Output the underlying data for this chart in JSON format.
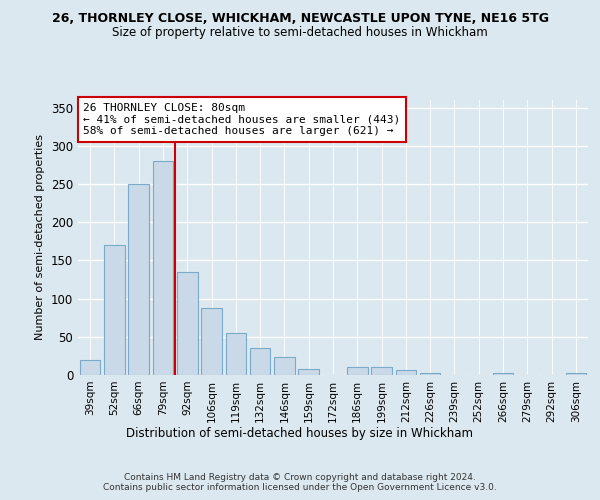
{
  "title1": "26, THORNLEY CLOSE, WHICKHAM, NEWCASTLE UPON TYNE, NE16 5TG",
  "title2": "Size of property relative to semi-detached houses in Whickham",
  "xlabel": "Distribution of semi-detached houses by size in Whickham",
  "ylabel": "Number of semi-detached properties",
  "categories": [
    "39sqm",
    "52sqm",
    "66sqm",
    "79sqm",
    "92sqm",
    "106sqm",
    "119sqm",
    "132sqm",
    "146sqm",
    "159sqm",
    "172sqm",
    "186sqm",
    "199sqm",
    "212sqm",
    "226sqm",
    "239sqm",
    "252sqm",
    "266sqm",
    "279sqm",
    "292sqm",
    "306sqm"
  ],
  "values": [
    20,
    170,
    250,
    280,
    135,
    88,
    55,
    35,
    23,
    8,
    0,
    10,
    10,
    7,
    3,
    0,
    0,
    2,
    0,
    0,
    3
  ],
  "bar_color": "#c9d9e8",
  "bar_edgecolor": "#7aaac8",
  "property_bin_index": 3,
  "annotation_title": "26 THORNLEY CLOSE: 80sqm",
  "annotation_line1": "← 41% of semi-detached houses are smaller (443)",
  "annotation_line2": "58% of semi-detached houses are larger (621) →",
  "vline_color": "#cc0000",
  "annotation_box_color": "#ffffff",
  "annotation_box_edgecolor": "#cc0000",
  "ylim": [
    0,
    360
  ],
  "yticks": [
    0,
    50,
    100,
    150,
    200,
    250,
    300,
    350
  ],
  "footer": "Contains HM Land Registry data © Crown copyright and database right 2024.\nContains public sector information licensed under the Open Government Licence v3.0.",
  "background_color": "#dce8f0",
  "plot_background_color": "#dce8f0"
}
